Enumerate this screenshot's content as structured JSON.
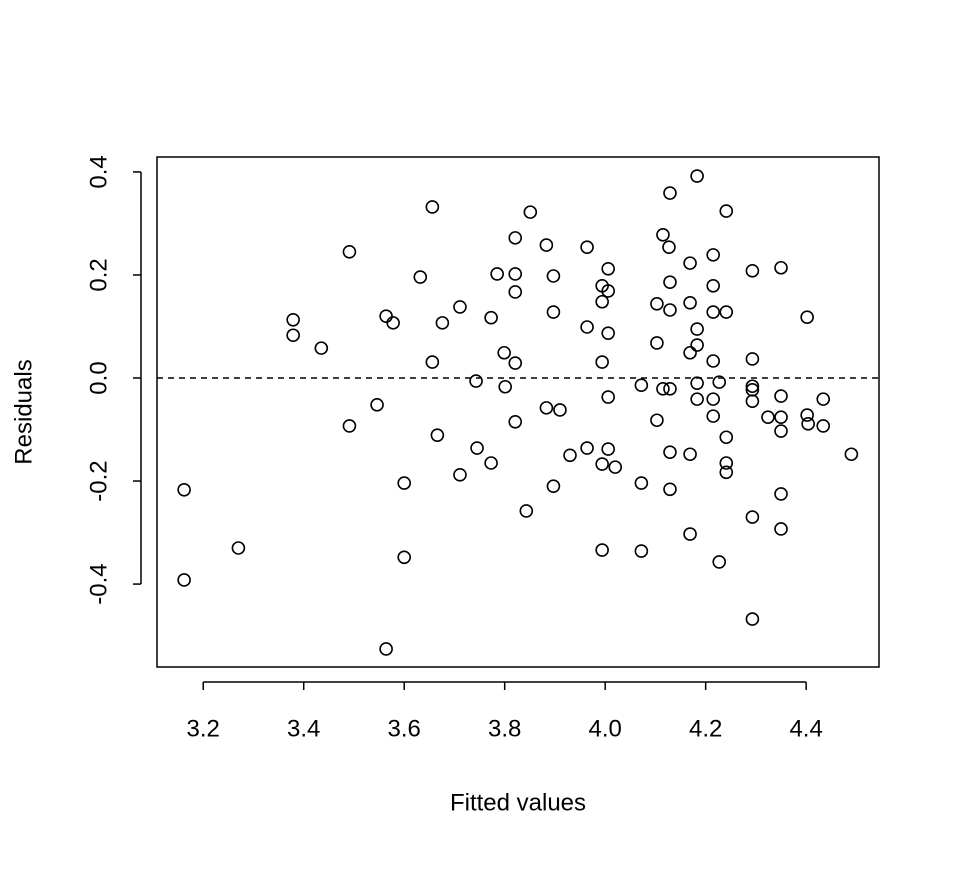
{
  "chart_data": {
    "type": "scatter",
    "x_label": "Fitted values",
    "y_label": "Residuals",
    "xlim": [
      3.108,
      4.545
    ],
    "ylim": [
      -0.561,
      0.429
    ],
    "xticks": [
      3.2,
      3.4,
      3.6,
      3.8,
      {
        "value": 4,
        "label": "4.0"
      },
      4.2,
      4.4
    ],
    "yticks": [
      -0.4,
      -0.2,
      {
        "value": 0,
        "label": "0.0"
      },
      0.2,
      0.4
    ],
    "hline": 0,
    "marker_color": "#000000",
    "series": [
      {
        "name": "Residuals",
        "x": [
          3.162,
          3.162,
          3.27,
          3.379,
          3.379,
          3.435,
          3.491,
          3.491,
          3.546,
          3.564,
          3.578,
          3.564,
          3.6,
          3.6,
          3.632,
          3.656,
          3.656,
          3.666,
          3.676,
          3.711,
          3.711,
          3.743,
          3.745,
          3.773,
          3.773,
          3.785,
          3.799,
          3.801,
          3.821,
          3.821,
          3.821,
          3.821,
          3.821,
          3.843,
          3.851,
          3.883,
          3.883,
          3.897,
          3.897,
          3.897,
          3.91,
          3.93,
          3.964,
          3.964,
          3.964,
          3.994,
          3.994,
          3.994,
          3.994,
          3.994,
          4.006,
          4.006,
          4.006,
          4.006,
          4.006,
          4.02,
          4.072,
          4.072,
          4.072,
          4.103,
          4.103,
          4.103,
          4.115,
          4.115,
          4.127,
          4.129,
          4.129,
          4.129,
          4.129,
          4.129,
          4.129,
          4.169,
          4.169,
          4.169,
          4.169,
          4.169,
          4.183,
          4.183,
          4.183,
          4.183,
          4.183,
          4.215,
          4.215,
          4.215,
          4.215,
          4.215,
          4.215,
          4.227,
          4.227,
          4.241,
          4.241,
          4.241,
          4.241,
          4.241,
          4.293,
          4.293,
          4.293,
          4.293,
          4.293,
          4.293,
          4.293,
          4.324,
          4.35,
          4.35,
          4.35,
          4.35,
          4.35,
          4.35,
          4.402,
          4.402,
          4.404,
          4.434,
          4.434,
          4.49
        ],
        "values": [
          -0.217,
          -0.392,
          -0.33,
          0.113,
          0.083,
          0.058,
          0.245,
          -0.093,
          -0.052,
          0.12,
          0.107,
          -0.526,
          -0.204,
          -0.348,
          0.196,
          0.332,
          0.031,
          -0.111,
          0.107,
          0.138,
          -0.188,
          -0.006,
          -0.136,
          0.117,
          -0.165,
          0.202,
          0.049,
          -0.017,
          0.272,
          0.202,
          0.167,
          0.029,
          -0.085,
          -0.258,
          0.322,
          0.258,
          -0.058,
          0.198,
          0.128,
          -0.21,
          -0.062,
          -0.15,
          0.254,
          0.099,
          -0.136,
          0.179,
          0.148,
          0.031,
          -0.167,
          -0.334,
          0.212,
          0.169,
          0.087,
          -0.037,
          -0.138,
          -0.173,
          -0.014,
          -0.204,
          -0.336,
          0.144,
          0.068,
          -0.082,
          0.278,
          -0.021,
          0.254,
          0.359,
          0.186,
          0.132,
          -0.021,
          -0.144,
          -0.216,
          0.223,
          0.146,
          0.049,
          -0.148,
          -0.303,
          0.392,
          0.095,
          0.064,
          -0.01,
          -0.041,
          0.239,
          0.179,
          0.128,
          0.033,
          -0.041,
          -0.074,
          -0.008,
          -0.357,
          -0.115,
          -0.165,
          -0.183,
          0.128,
          0.324,
          0.208,
          0.037,
          -0.016,
          -0.023,
          -0.045,
          -0.27,
          -0.468,
          -0.076,
          0.214,
          -0.035,
          -0.076,
          -0.103,
          -0.225,
          -0.293,
          0.118,
          -0.072,
          -0.089,
          -0.041,
          -0.093,
          -0.148
        ]
      }
    ]
  }
}
